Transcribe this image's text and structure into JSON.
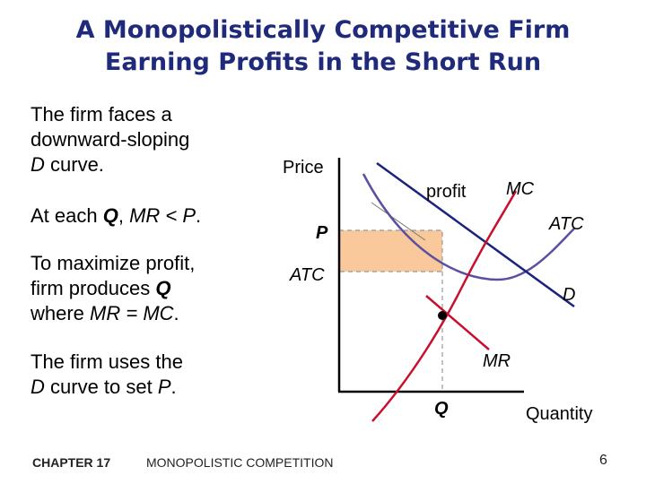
{
  "slide": {
    "title_line1": "A Monopolistically Competitive Firm",
    "title_line2": "Earning Profits in the Short Run",
    "footer_chapter": "CHAPTER 17",
    "footer_topic": "MONOPOLISTIC COMPETITION",
    "page_number": "6"
  },
  "bullets": {
    "b1_line1": "The firm faces a",
    "b1_line2": "downward-sloping",
    "b1_d": "D",
    "b1_curve": " curve.",
    "b2_prefix": "At each ",
    "b2_q": "Q",
    "b2_comma": ", ",
    "b2_expr": "MR < P",
    "b2_end": ".",
    "b3_line1": "To maximize profit,",
    "b3_line2_pre": "firm produces ",
    "b3_q": "Q",
    "b3_line3_pre": "where ",
    "b3_expr": "MR = MC",
    "b3_end": ".",
    "b4_line1": "The firm uses the",
    "b4_d": "D",
    "b4_line2_post": " curve to set ",
    "b4_p": "P",
    "b4_end": "."
  },
  "diagram": {
    "y_axis_label": "Price",
    "x_axis_label": "Quantity",
    "label_p": "P",
    "label_atc_axis": "ATC",
    "label_profit": "profit",
    "label_mc": "MC",
    "label_atc_curve": "ATC",
    "label_d": "D",
    "label_mr": "MR",
    "label_q": "Q",
    "colors": {
      "demand": "#1a237e",
      "atc": "#5a4fa0",
      "mc_mr": "#c8102e",
      "profit_fill": "#f9c89b",
      "dash": "#999999"
    }
  }
}
